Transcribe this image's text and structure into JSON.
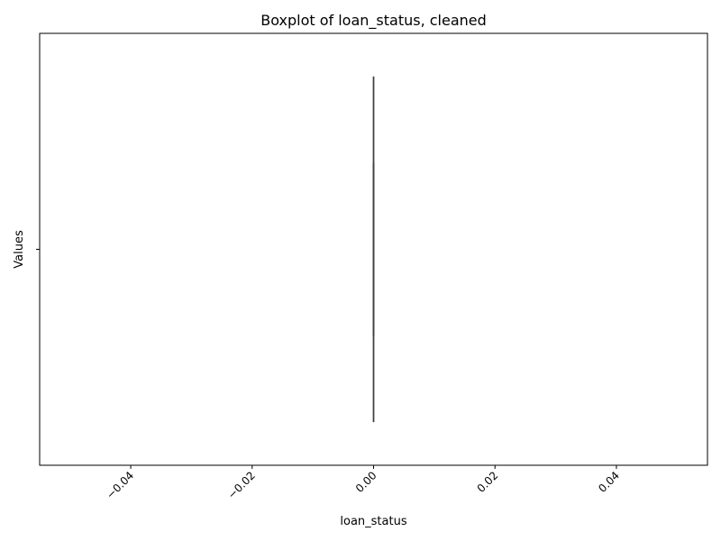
{
  "chart_data": {
    "type": "boxplot",
    "orientation": "vertical",
    "title": "Boxplot of loan_status, cleaned",
    "xlabel": "loan_status",
    "ylabel": "Values",
    "xlim": [
      -0.055,
      0.055
    ],
    "x_ticks": [
      -0.04,
      -0.02,
      0.0,
      0.02,
      0.04
    ],
    "x_tick_labels": [
      "−0.04",
      "−0.02",
      "0.00",
      "0.02",
      "0.04"
    ],
    "x_tick_rotation": 45,
    "y_tick_labels": [
      ""
    ],
    "grid": false,
    "colors": {
      "box_edge": "#3f3f3f",
      "axes": "#000000",
      "background": "#ffffff"
    },
    "boxes": [
      {
        "position": 0.0,
        "whisker_low": 0.0,
        "q1": 0.0,
        "median": 0.0,
        "q3": 0.0,
        "whisker_high": 0.0
      }
    ]
  }
}
